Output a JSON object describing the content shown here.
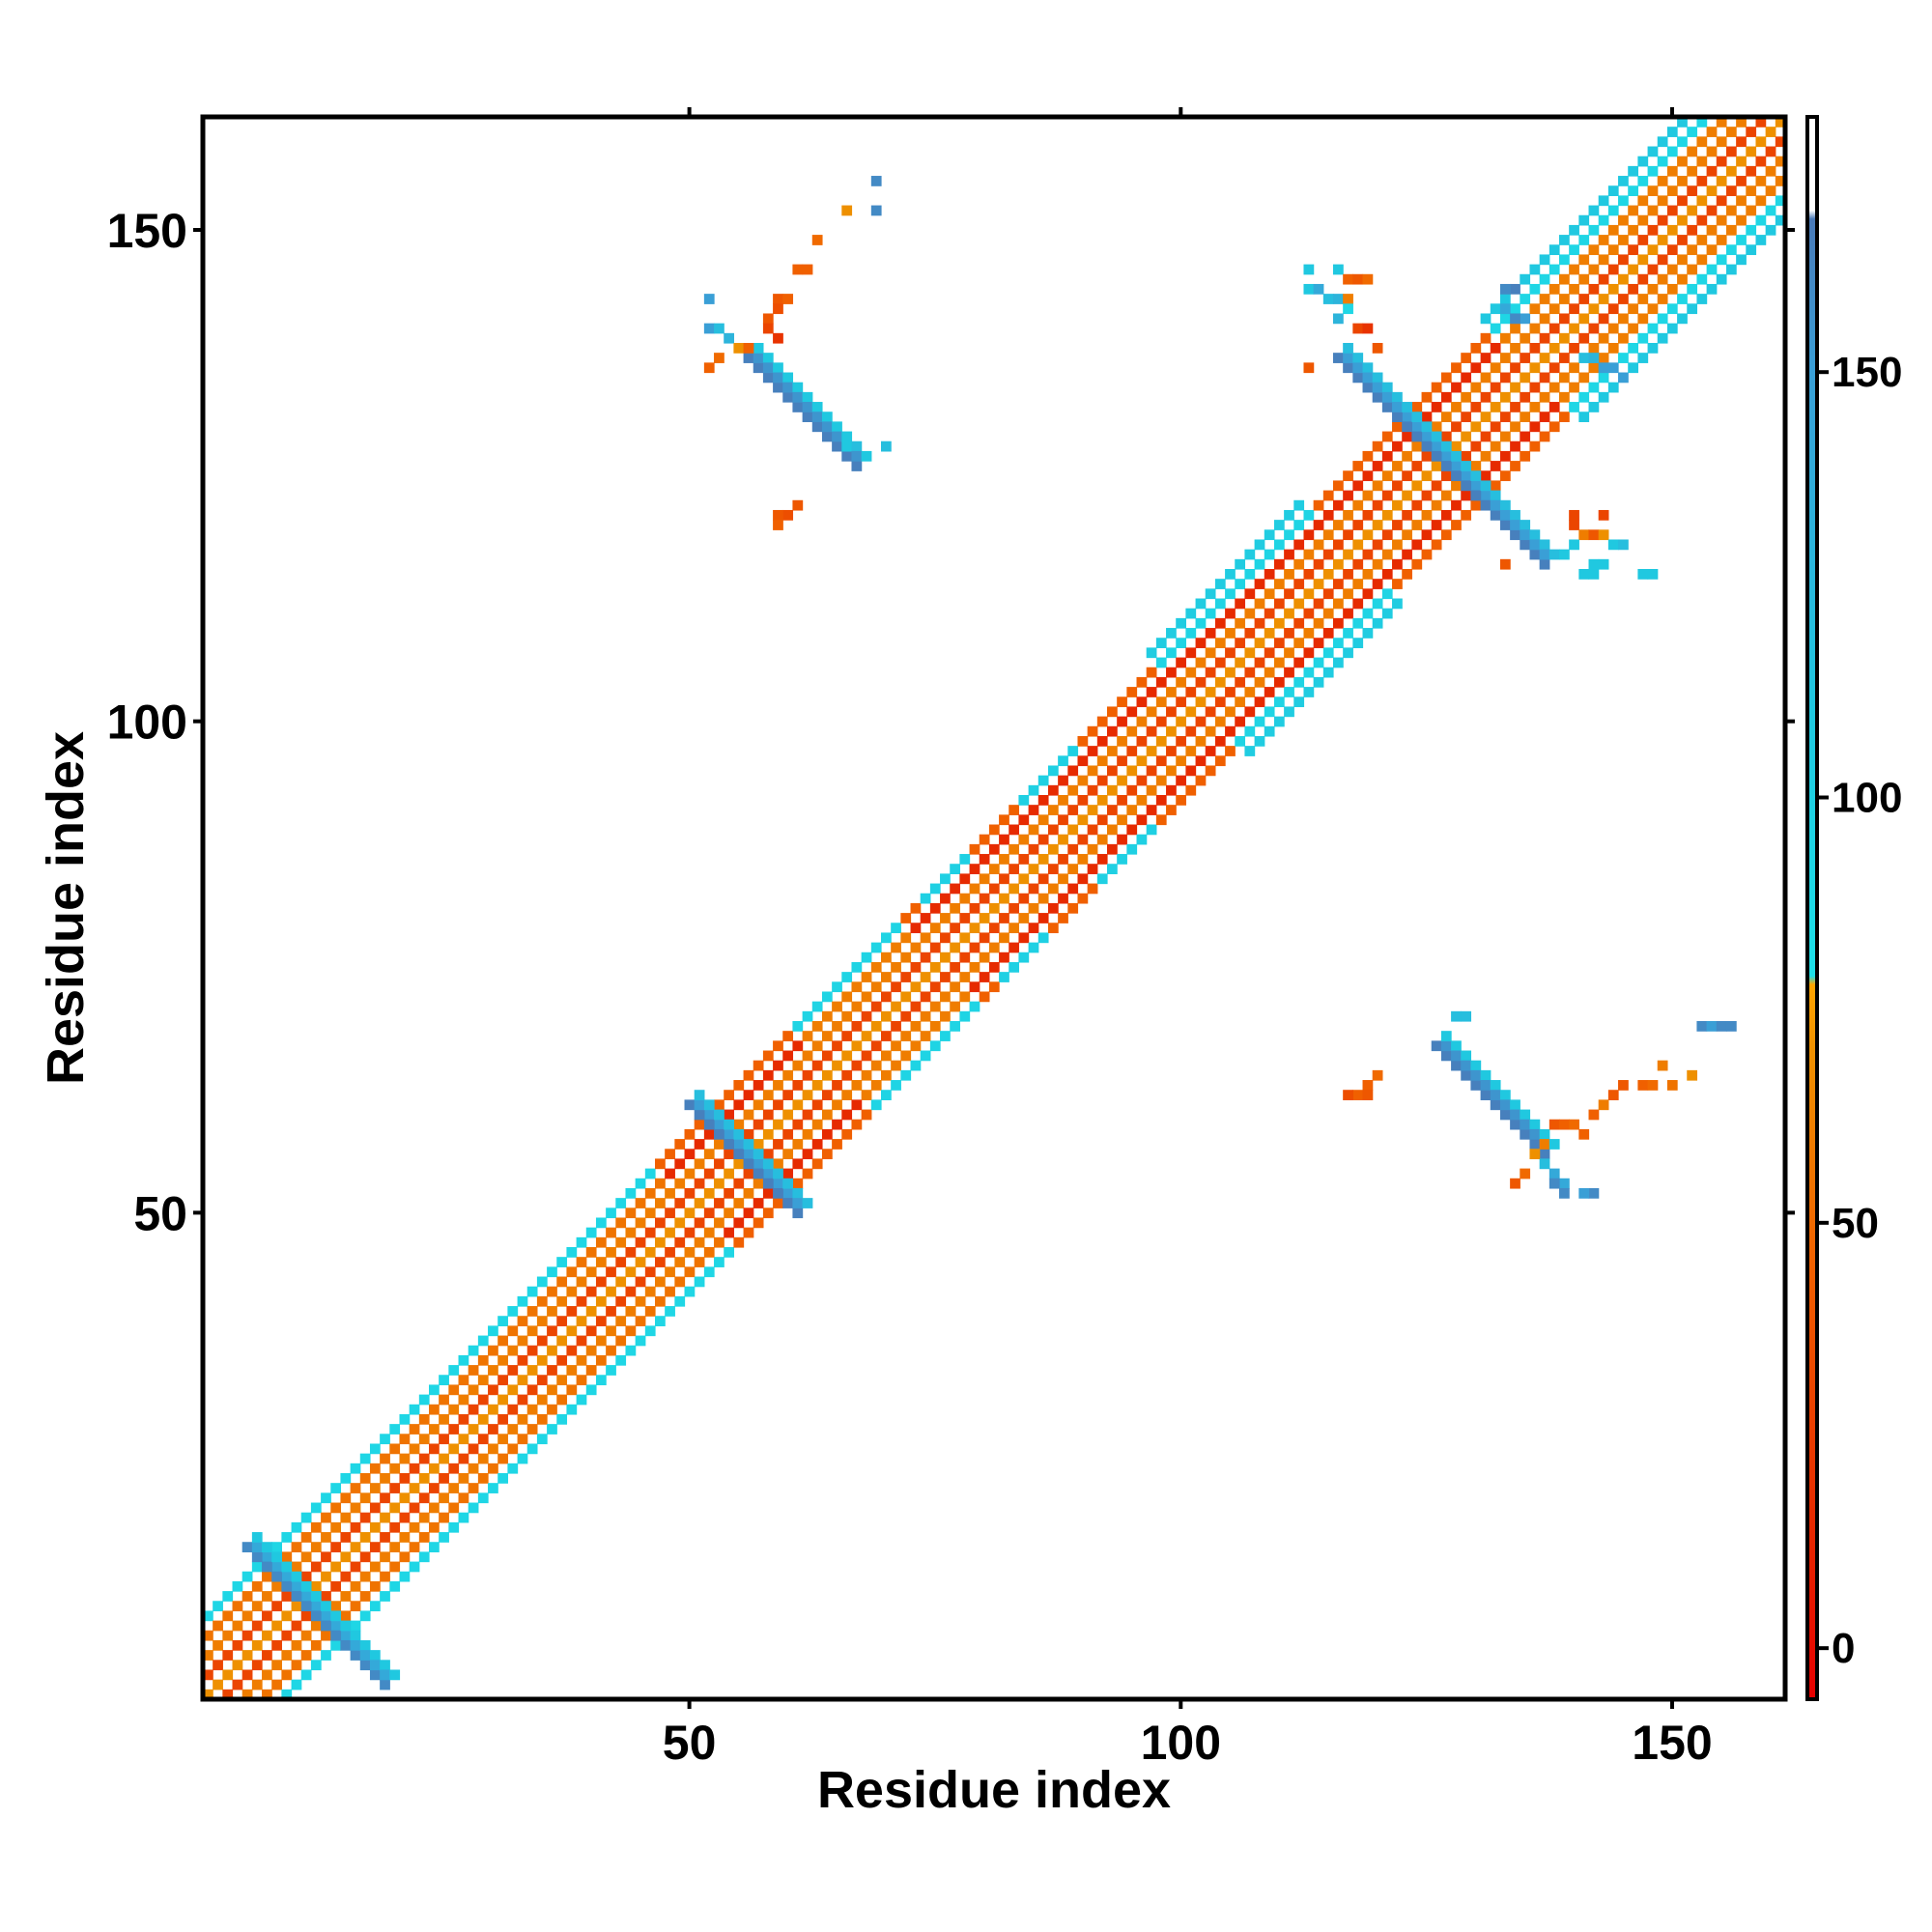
{
  "chart_data": {
    "type": "heatmap",
    "title": "",
    "xlabel": "Residue index",
    "ylabel": "Residue index",
    "xlim": [
      1,
      161
    ],
    "ylim": [
      1,
      161
    ],
    "x_ticks": [
      50,
      100,
      150
    ],
    "y_ticks": [
      50,
      100,
      150
    ],
    "colorbar": {
      "ticks": [
        0,
        50,
        100,
        150
      ],
      "range": [
        -6,
        180
      ],
      "stops": [
        {
          "value": -6,
          "color": "#e60000"
        },
        {
          "value": 15,
          "color": "#e62a00"
        },
        {
          "value": 45,
          "color": "#f06000"
        },
        {
          "value": 70,
          "color": "#ee9000"
        },
        {
          "value": 78,
          "color": "#ffa500"
        },
        {
          "value": 79,
          "color": "#1ee0e8"
        },
        {
          "value": 110,
          "color": "#20c8e0"
        },
        {
          "value": 150,
          "color": "#3a9fd6"
        },
        {
          "value": 168,
          "color": "#4a7ab8"
        },
        {
          "value": 169,
          "color": "#ffffff"
        },
        {
          "value": 180,
          "color": "#ffffff"
        }
      ]
    },
    "bands": [
      {
        "note": "main diagonal",
        "start": [
          1,
          1
        ],
        "end": [
          161,
          161
        ],
        "offsets": [
          -4,
          -3,
          -2,
          -1,
          0,
          1,
          2,
          3,
          4
        ],
        "values": [
          45,
          15,
          60,
          30,
          70,
          30,
          60,
          15,
          45
        ]
      },
      {
        "note": "helical segment",
        "start": [
          3,
          3
        ],
        "end": [
          50,
          50
        ],
        "offsets": [
          -4,
          -3,
          3,
          4
        ],
        "values": [
          92,
          55,
          55,
          92
        ]
      },
      {
        "note": "helical segment",
        "start": [
          65,
          65
        ],
        "end": [
          75,
          75
        ],
        "offsets": [
          -4,
          -3,
          3,
          4
        ],
        "values": [
          95,
          60,
          60,
          95
        ]
      },
      {
        "note": "helical segment",
        "start": [
          78,
          78
        ],
        "end": [
          82,
          82
        ],
        "offsets": [
          -4,
          4
        ],
        "values": [
          100,
          100
        ]
      },
      {
        "note": "helical segment",
        "start": [
          88,
          88
        ],
        "end": [
          93,
          93
        ],
        "offsets": [
          -4,
          4
        ],
        "values": [
          100,
          100
        ]
      },
      {
        "note": "helical segment",
        "start": [
          102,
          102
        ],
        "end": [
          117,
          117
        ],
        "offsets": [
          -5,
          -4,
          4,
          5
        ],
        "values": [
          105,
          95,
          95,
          105
        ]
      },
      {
        "note": "helical segment",
        "start": [
          136,
          136
        ],
        "end": [
          159,
          159
        ],
        "offsets": [
          -5,
          -4,
          -3,
          3,
          4,
          5
        ],
        "values": [
          110,
          92,
          60,
          60,
          92,
          110
        ]
      },
      {
        "note": "antiparallel cross",
        "start": [
          6,
          16
        ],
        "end": [
          19,
          3
        ],
        "offsets": [
          -1,
          0,
          1
        ],
        "values": [
          160,
          140,
          110
        ]
      },
      {
        "note": "antiparallel cross",
        "start": [
          51,
          61
        ],
        "end": [
          61,
          51
        ],
        "offsets": [
          -1,
          0,
          1
        ],
        "values": [
          165,
          150,
          120
        ]
      },
      {
        "note": "antiparallel cross",
        "start": [
          117,
          137
        ],
        "end": [
          137,
          117
        ],
        "offsets": [
          -1,
          0,
          1
        ],
        "values": [
          165,
          150,
          120
        ]
      },
      {
        "note": "off-diagonal contact",
        "start": [
          57,
          137
        ],
        "end": [
          67,
          127
        ],
        "offsets": [
          -1,
          0,
          1
        ],
        "values": [
          165,
          155,
          110
        ]
      },
      {
        "note": "off-diagonal contact",
        "start": [
          127,
          67
        ],
        "end": [
          137,
          57
        ],
        "offsets": [
          -1,
          0,
          1
        ],
        "values": [
          165,
          155,
          110
        ]
      }
    ],
    "points": [
      [
        69,
        155,
        160
      ],
      [
        69,
        152,
        160
      ],
      [
        66,
        152,
        70
      ],
      [
        63,
        149,
        50
      ],
      [
        62,
        146,
        45
      ],
      [
        61,
        146,
        45
      ],
      [
        59,
        143,
        40
      ],
      [
        60,
        143,
        45
      ],
      [
        59,
        142,
        35
      ],
      [
        58,
        141,
        40
      ],
      [
        59,
        139,
        20
      ],
      [
        58,
        140,
        30
      ],
      [
        52,
        143,
        150
      ],
      [
        52,
        140,
        150
      ],
      [
        53,
        140,
        120
      ],
      [
        54,
        139,
        130
      ],
      [
        55,
        138,
        70
      ],
      [
        56,
        138,
        45
      ],
      [
        53,
        137,
        50
      ],
      [
        52,
        136,
        45
      ],
      [
        70,
        128,
        120
      ],
      [
        67,
        128,
        120
      ],
      [
        66,
        128,
        110
      ],
      [
        61,
        122,
        40
      ],
      [
        60,
        121,
        35
      ],
      [
        59,
        121,
        40
      ],
      [
        59,
        120,
        45
      ],
      [
        113,
        146,
        110
      ],
      [
        116,
        146,
        110
      ],
      [
        113,
        144,
        110
      ],
      [
        114,
        144,
        140
      ],
      [
        115,
        143,
        120
      ],
      [
        116,
        143,
        130
      ],
      [
        117,
        145,
        45
      ],
      [
        118,
        145,
        40
      ],
      [
        119,
        145,
        50
      ],
      [
        117,
        143,
        60
      ],
      [
        117,
        142,
        90
      ],
      [
        116,
        141,
        130
      ],
      [
        118,
        140,
        30
      ],
      [
        119,
        140,
        20
      ],
      [
        120,
        138,
        40
      ],
      [
        113,
        136,
        40
      ],
      [
        133,
        144,
        160
      ],
      [
        134,
        144,
        165
      ],
      [
        133,
        142,
        140
      ],
      [
        134,
        141,
        160
      ],
      [
        135,
        141,
        150
      ],
      [
        141,
        137,
        120
      ],
      [
        142,
        137,
        130
      ],
      [
        143,
        136,
        150
      ],
      [
        144,
        136,
        150
      ],
      [
        145,
        135,
        150
      ],
      [
        140,
        121,
        30
      ],
      [
        143,
        121,
        30
      ],
      [
        140,
        120,
        30
      ],
      [
        141,
        119,
        60
      ],
      [
        142,
        119,
        40
      ],
      [
        143,
        119,
        70
      ],
      [
        140,
        118,
        110
      ],
      [
        144,
        118,
        110
      ],
      [
        139,
        117,
        110
      ],
      [
        142,
        116,
        110
      ],
      [
        143,
        116,
        110
      ],
      [
        133,
        116,
        40
      ],
      [
        141,
        115,
        110
      ],
      [
        142,
        115,
        110
      ],
      [
        147,
        115,
        110
      ],
      [
        148,
        115,
        110
      ],
      [
        145,
        118,
        120
      ],
      [
        128,
        70,
        120
      ],
      [
        129,
        70,
        120
      ],
      [
        120,
        64,
        50
      ],
      [
        119,
        63,
        45
      ],
      [
        118,
        62,
        45
      ],
      [
        119,
        62,
        40
      ],
      [
        117,
        62,
        35
      ],
      [
        134,
        53,
        40
      ],
      [
        135,
        54,
        50
      ],
      [
        136,
        56,
        70
      ],
      [
        137,
        57,
        60
      ],
      [
        137,
        55,
        120
      ],
      [
        138,
        54,
        140
      ],
      [
        139,
        53,
        140
      ],
      [
        138,
        53,
        160
      ],
      [
        139,
        52,
        160
      ],
      [
        142,
        52,
        160
      ],
      [
        141,
        52,
        150
      ],
      [
        138,
        59,
        40
      ],
      [
        139,
        59,
        45
      ],
      [
        140,
        59,
        50
      ],
      [
        141,
        58,
        45
      ],
      [
        142,
        60,
        45
      ],
      [
        143,
        61,
        60
      ],
      [
        144,
        62,
        40
      ],
      [
        145,
        63,
        40
      ],
      [
        147,
        63,
        45
      ],
      [
        148,
        63,
        50
      ],
      [
        150,
        63,
        55
      ],
      [
        149,
        65,
        60
      ],
      [
        152,
        64,
        70
      ],
      [
        153,
        69,
        160
      ],
      [
        154,
        69,
        150
      ],
      [
        155,
        69,
        160
      ],
      [
        156,
        69,
        160
      ]
    ]
  }
}
